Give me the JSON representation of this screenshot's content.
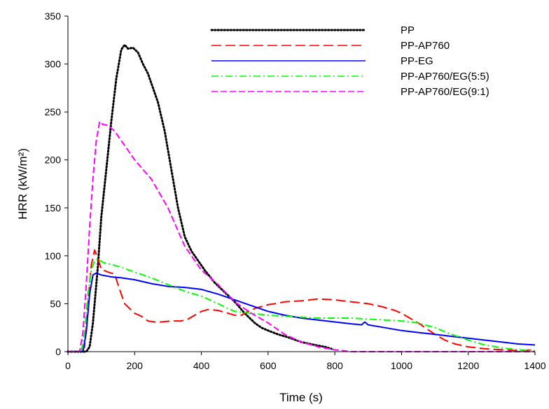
{
  "chart_data": {
    "type": "line",
    "title": "",
    "xlabel": "Time (s)",
    "ylabel": "HRR (kW/m²)",
    "xlim": [
      0,
      1400
    ],
    "ylim": [
      0,
      350
    ],
    "x_ticks": [
      0,
      200,
      400,
      600,
      800,
      1000,
      1200,
      1400
    ],
    "y_ticks": [
      0,
      50,
      100,
      150,
      200,
      250,
      300,
      350
    ],
    "grid": false,
    "legend_position": "top-right",
    "series": [
      {
        "name": "PP",
        "color": "#000000",
        "dash": "dotted",
        "points": [
          [
            0,
            0
          ],
          [
            55,
            0
          ],
          [
            65,
            5
          ],
          [
            75,
            30
          ],
          [
            90,
            90
          ],
          [
            100,
            140
          ],
          [
            115,
            190
          ],
          [
            130,
            240
          ],
          [
            145,
            285
          ],
          [
            160,
            315
          ],
          [
            170,
            320
          ],
          [
            180,
            316
          ],
          [
            195,
            317
          ],
          [
            210,
            312
          ],
          [
            225,
            300
          ],
          [
            240,
            290
          ],
          [
            255,
            275
          ],
          [
            270,
            260
          ],
          [
            290,
            230
          ],
          [
            310,
            190
          ],
          [
            330,
            150
          ],
          [
            350,
            120
          ],
          [
            370,
            105
          ],
          [
            390,
            95
          ],
          [
            410,
            85
          ],
          [
            440,
            72
          ],
          [
            470,
            62
          ],
          [
            500,
            52
          ],
          [
            530,
            40
          ],
          [
            560,
            30
          ],
          [
            580,
            25
          ],
          [
            600,
            22
          ],
          [
            630,
            18
          ],
          [
            660,
            15
          ],
          [
            700,
            10
          ],
          [
            740,
            7
          ],
          [
            770,
            5
          ],
          [
            790,
            3
          ]
        ]
      },
      {
        "name": "PP-AP760",
        "color": "#ff0000",
        "dash": "long-dash",
        "points": [
          [
            0,
            0
          ],
          [
            40,
            0
          ],
          [
            50,
            5
          ],
          [
            60,
            50
          ],
          [
            70,
            90
          ],
          [
            80,
            106
          ],
          [
            90,
            97
          ],
          [
            100,
            86
          ],
          [
            120,
            83
          ],
          [
            140,
            81
          ],
          [
            150,
            70
          ],
          [
            160,
            60
          ],
          [
            170,
            50
          ],
          [
            185,
            45
          ],
          [
            200,
            40
          ],
          [
            220,
            37
          ],
          [
            240,
            32
          ],
          [
            260,
            31
          ],
          [
            280,
            31
          ],
          [
            310,
            32
          ],
          [
            340,
            32
          ],
          [
            360,
            34
          ],
          [
            380,
            38
          ],
          [
            400,
            42
          ],
          [
            420,
            44
          ],
          [
            450,
            43
          ],
          [
            480,
            40
          ],
          [
            500,
            38
          ],
          [
            520,
            38
          ],
          [
            540,
            42
          ],
          [
            560,
            45
          ],
          [
            580,
            47
          ],
          [
            600,
            49
          ],
          [
            620,
            50
          ],
          [
            650,
            52
          ],
          [
            700,
            53
          ],
          [
            750,
            55
          ],
          [
            800,
            54
          ],
          [
            850,
            52
          ],
          [
            900,
            50
          ],
          [
            940,
            47
          ],
          [
            980,
            43
          ],
          [
            1000,
            40
          ],
          [
            1050,
            30
          ],
          [
            1100,
            18
          ],
          [
            1130,
            12
          ],
          [
            1160,
            8
          ],
          [
            1200,
            5
          ],
          [
            1250,
            3
          ],
          [
            1300,
            2
          ],
          [
            1350,
            1
          ],
          [
            1400,
            2
          ]
        ]
      },
      {
        "name": "PP-EG",
        "color": "#0000ff",
        "dash": "solid",
        "points": [
          [
            0,
            0
          ],
          [
            45,
            0
          ],
          [
            55,
            20
          ],
          [
            65,
            60
          ],
          [
            75,
            80
          ],
          [
            85,
            82
          ],
          [
            100,
            80
          ],
          [
            130,
            78
          ],
          [
            160,
            77
          ],
          [
            200,
            75
          ],
          [
            250,
            71
          ],
          [
            300,
            68
          ],
          [
            350,
            67
          ],
          [
            400,
            65
          ],
          [
            450,
            60
          ],
          [
            500,
            54
          ],
          [
            550,
            48
          ],
          [
            600,
            42
          ],
          [
            650,
            38
          ],
          [
            700,
            35
          ],
          [
            750,
            33
          ],
          [
            800,
            31
          ],
          [
            850,
            29
          ],
          [
            880,
            28
          ],
          [
            890,
            31
          ],
          [
            900,
            28
          ],
          [
            950,
            25
          ],
          [
            1000,
            22
          ],
          [
            1050,
            20
          ],
          [
            1100,
            18
          ],
          [
            1150,
            16
          ],
          [
            1200,
            14
          ],
          [
            1250,
            12
          ],
          [
            1300,
            10
          ],
          [
            1350,
            8
          ],
          [
            1400,
            7
          ]
        ]
      },
      {
        "name": "PP-AP760/EG(5:5)",
        "color": "#00ff00",
        "dash": "dash-dot",
        "points": [
          [
            0,
            0
          ],
          [
            40,
            0
          ],
          [
            50,
            20
          ],
          [
            60,
            60
          ],
          [
            70,
            85
          ],
          [
            80,
            95
          ],
          [
            90,
            97
          ],
          [
            105,
            93
          ],
          [
            130,
            91
          ],
          [
            160,
            88
          ],
          [
            200,
            83
          ],
          [
            250,
            77
          ],
          [
            300,
            70
          ],
          [
            350,
            63
          ],
          [
            400,
            58
          ],
          [
            450,
            50
          ],
          [
            480,
            45
          ],
          [
            500,
            42
          ],
          [
            550,
            40
          ],
          [
            600,
            38
          ],
          [
            650,
            37
          ],
          [
            700,
            36
          ],
          [
            750,
            35
          ],
          [
            800,
            35
          ],
          [
            850,
            35
          ],
          [
            900,
            34
          ],
          [
            950,
            33
          ],
          [
            1000,
            32
          ],
          [
            1050,
            30
          ],
          [
            1080,
            27
          ],
          [
            1100,
            25
          ],
          [
            1150,
            18
          ],
          [
            1200,
            12
          ],
          [
            1250,
            7
          ],
          [
            1300,
            4
          ],
          [
            1350,
            2
          ],
          [
            1400,
            1
          ]
        ]
      },
      {
        "name": "PP-AP760/EG(9:1)",
        "color": "#ff00ff",
        "dash": "dashed",
        "points": [
          [
            0,
            0
          ],
          [
            35,
            0
          ],
          [
            45,
            20
          ],
          [
            55,
            70
          ],
          [
            65,
            130
          ],
          [
            75,
            180
          ],
          [
            85,
            220
          ],
          [
            95,
            240
          ],
          [
            105,
            237
          ],
          [
            120,
            236
          ],
          [
            140,
            230
          ],
          [
            170,
            215
          ],
          [
            200,
            200
          ],
          [
            250,
            180
          ],
          [
            300,
            150
          ],
          [
            350,
            110
          ],
          [
            400,
            85
          ],
          [
            450,
            70
          ],
          [
            500,
            52
          ],
          [
            550,
            40
          ],
          [
            600,
            30
          ],
          [
            650,
            18
          ],
          [
            700,
            10
          ],
          [
            750,
            5
          ],
          [
            800,
            2
          ],
          [
            850,
            0
          ],
          [
            900,
            0
          ],
          [
            1000,
            0
          ],
          [
            1100,
            0
          ],
          [
            1200,
            0
          ],
          [
            1300,
            0
          ],
          [
            1400,
            0
          ]
        ]
      }
    ]
  }
}
